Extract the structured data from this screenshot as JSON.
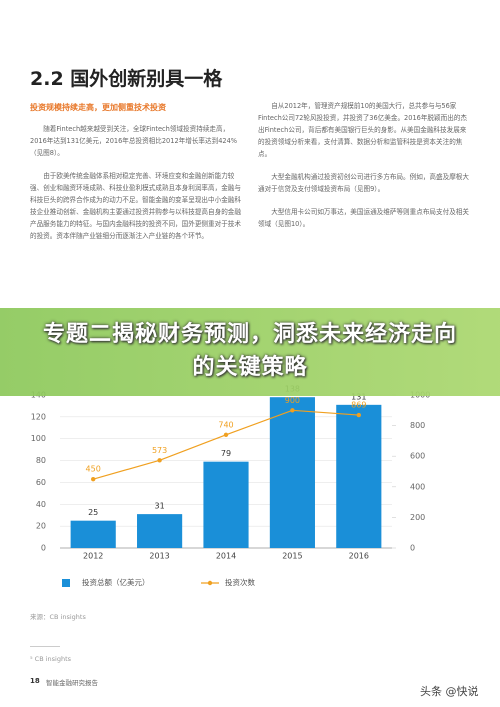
{
  "header": {
    "title": "2.2 国外创新别具一格",
    "subheading": "投资规模持续走高，更加侧重技术投资"
  },
  "left_column": {
    "paragraphs": [
      "随着Fintech越来越受到关注，全球Fintech领域投资持续走高，2016年达到131亿美元，2016年总投资相比2012年增长率达到424%（见图8）。",
      "由于欧美传统金融体系相对稳定完善、环境应变和金融创新能力较强、创业和融资环境成熟、科技业盈利模式成熟且本身利润率高，金融与科技巨头的跨界合作成为的动力不足。智能金融的变革呈现出中小金融科技企业推动创新、金融机构主要通过投资并购参与以科技提高自身的金融产品服务能力的特征。与国内金融科技的投资不同，国外更侧重对于技术的投资。资本伴随产业链细分而逐渐注入产业链的各个环节。"
    ]
  },
  "right_column": {
    "paragraphs": [
      "自从2012年，管理资产规模前10的美国大行，总共参与与56家Fintech公司72轮风投投资，并投资了36亿美金。2016年脱颖而出的杰出Fintech公司，背后都有美国银行巨头的身影。从美国金融科技发展来的投资领域分析来看，支付清算、数据分析和监管科技是资本关注的焦点。",
      "大型金融机构通过投资初创公司进行多方布局。例如，高盛及摩根大通对于信贷及支付领域投资布局（见图9）。",
      "大型信用卡公司如万事达，美国运通及维萨等则重点布局支付及相关领域（见图10）。"
    ]
  },
  "banner": {
    "text": "专题二揭秘财务预测，洞悉未来经济走向的关键策略"
  },
  "chart_data": {
    "type": "bar_line",
    "categories": [
      "2012",
      "2013",
      "2014",
      "2015",
      "2016"
    ],
    "series": [
      {
        "name": "投资总额（亿美元）",
        "type": "bar",
        "color": "#1a8fd8",
        "values": [
          25,
          31,
          79,
          138,
          131
        ]
      },
      {
        "name": "投资次数",
        "type": "line",
        "axis": "y2",
        "color": "#f0a020",
        "values": [
          450,
          573,
          740,
          900,
          869
        ]
      }
    ],
    "ylim": [
      0,
      140
    ],
    "yticks": [
      0,
      20,
      40,
      60,
      80,
      100,
      120,
      140
    ],
    "y2lim": [
      0,
      1000
    ],
    "y2ticks": [
      0,
      200,
      400,
      600,
      800,
      1000
    ],
    "grid": true,
    "legend": "bottom"
  },
  "source": "来源：CB insights",
  "footnote": "⁵ CB insights",
  "footer": {
    "page": "18",
    "name": "智能金融研究报告"
  },
  "watermark": "头条 @快说"
}
